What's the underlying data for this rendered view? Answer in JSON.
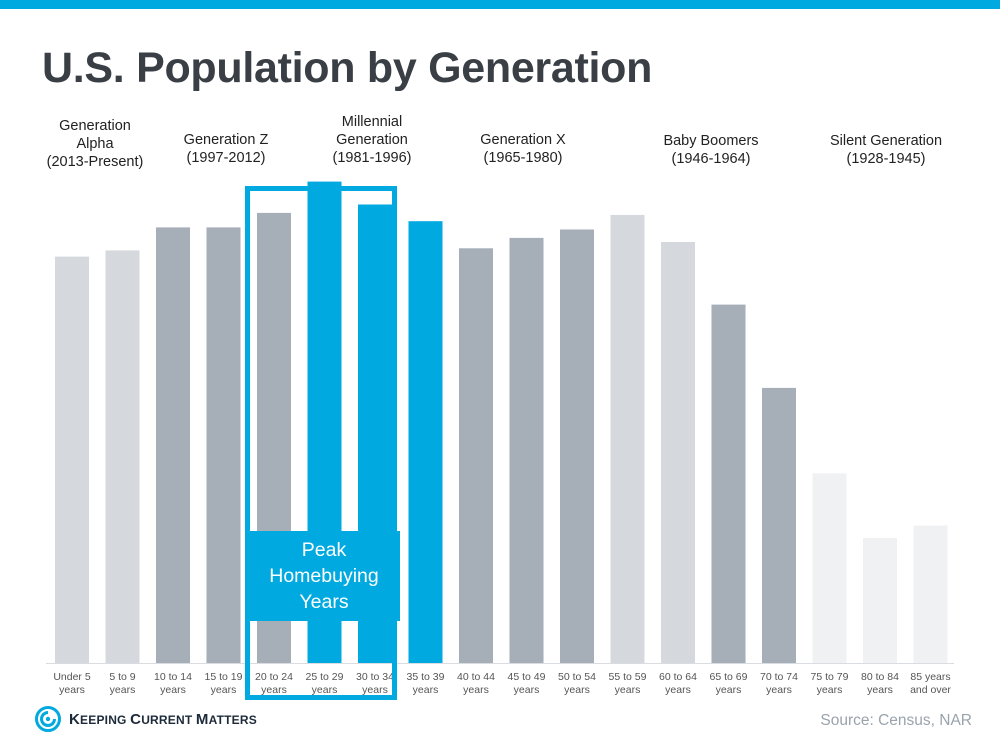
{
  "header": {
    "title": "U.S. Population by Generation"
  },
  "generations": [
    {
      "lines": [
        "Generation",
        "Alpha",
        "(2013-Present)"
      ]
    },
    {
      "lines": [
        "Generation Z",
        "(1997-2012)"
      ]
    },
    {
      "lines": [
        "Millennial",
        "Generation",
        "(1981-1996)"
      ]
    },
    {
      "lines": [
        "Generation X",
        "(1965-1980)"
      ]
    },
    {
      "lines": [
        "Baby Boomers",
        "(1946-1964)"
      ]
    },
    {
      "lines": [
        "Silent Generation",
        "(1928-1945)"
      ]
    }
  ],
  "highlight": {
    "label": "Peak Homebuying Years"
  },
  "footer": {
    "logo_text_big1": "K",
    "logo_text_small1": "EEPING ",
    "logo_text_big2": "C",
    "logo_text_small2": "URRENT ",
    "logo_text_big3": "M",
    "logo_text_small3": "ATTERS",
    "source": "Source: Census, NAR"
  },
  "colors": {
    "accent": "#00a9e0",
    "light_gray": "#d5d9de",
    "dark_gray": "#a6aeb8",
    "pale_gray": "#f0f1f3"
  },
  "chart_data": {
    "type": "bar",
    "categories": [
      [
        "Under 5",
        "years"
      ],
      [
        "5 to 9",
        "years"
      ],
      [
        "10 to 14",
        "years"
      ],
      [
        "15 to 19",
        "years"
      ],
      [
        "20 to 24",
        "years"
      ],
      [
        "25 to 29",
        "years"
      ],
      [
        "30 to 34",
        "years"
      ],
      [
        "35 to 39",
        "years"
      ],
      [
        "40 to 44",
        "years"
      ],
      [
        "45 to 49",
        "years"
      ],
      [
        "50 to 54",
        "years"
      ],
      [
        "55 to 59",
        "years"
      ],
      [
        "60 to 64",
        "years"
      ],
      [
        "65 to 69",
        "years"
      ],
      [
        "70 to 74",
        "years"
      ],
      [
        "75 to 79",
        "years"
      ],
      [
        "80 to 84",
        "years"
      ],
      [
        "85 years",
        "and over"
      ]
    ],
    "values": [
      19.5,
      19.8,
      20.9,
      20.9,
      21.6,
      23.1,
      22.0,
      21.2,
      19.9,
      20.4,
      20.8,
      21.5,
      20.2,
      17.2,
      13.2,
      9.1,
      6.0,
      6.6
    ],
    "bar_colors": [
      "light_gray",
      "light_gray",
      "dark_gray",
      "dark_gray",
      "dark_gray",
      "accent",
      "accent",
      "accent",
      "dark_gray",
      "dark_gray",
      "dark_gray",
      "light_gray",
      "light_gray",
      "dark_gray",
      "dark_gray",
      "pale_gray",
      "pale_gray",
      "pale_gray"
    ],
    "ylim": [
      0,
      25
    ],
    "grid": false
  }
}
